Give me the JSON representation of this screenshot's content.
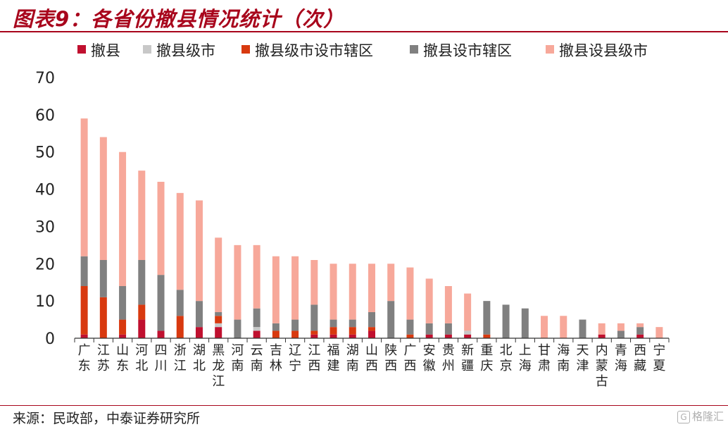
{
  "title": "图表9：各省份撤县情况统计（次）",
  "source": "来源：民政部，中泰证券研究所",
  "watermark": "格隆汇",
  "colors": {
    "title": "#a8051c",
    "series": [
      "#c0102f",
      "#c8c8c8",
      "#d8390f",
      "#808080",
      "#f7a89a"
    ]
  },
  "chart_data": {
    "type": "bar",
    "stacked": true,
    "ylim": [
      0,
      70
    ],
    "yticks": [
      0,
      10,
      20,
      30,
      40,
      50,
      60,
      70
    ],
    "legend_position": "top",
    "grid": false,
    "categories": [
      "广东",
      "江苏",
      "山东",
      "河北",
      "四川",
      "浙江",
      "湖北",
      "黑龙江",
      "河南",
      "云南",
      "吉林",
      "辽宁",
      "江西",
      "福建",
      "湖南",
      "山西",
      "陕西",
      "广西",
      "安徽",
      "贵州",
      "新疆",
      "重庆",
      "北京",
      "上海",
      "甘肃",
      "海南",
      "天津",
      "内蒙古",
      "青海",
      "西藏",
      "宁夏"
    ],
    "series": [
      {
        "name": "撤县",
        "values": [
          1,
          0,
          1,
          5,
          2,
          0,
          3,
          3,
          0,
          2,
          0,
          0,
          1,
          1,
          1,
          2,
          0,
          0,
          1,
          1,
          1,
          0,
          0,
          0,
          0,
          0,
          0,
          1,
          0,
          1,
          0
        ]
      },
      {
        "name": "撤县级市",
        "values": [
          0,
          0,
          0,
          0,
          0,
          0,
          0,
          1,
          0,
          1,
          0,
          0,
          0,
          0,
          0,
          0,
          0,
          0,
          0,
          0,
          1,
          0,
          0,
          0,
          0,
          0,
          0,
          0,
          0,
          0,
          0
        ]
      },
      {
        "name": "撤县级市设市辖区",
        "values": [
          13,
          11,
          4,
          4,
          0,
          6,
          0,
          2,
          0,
          0,
          2,
          2,
          1,
          2,
          2,
          1,
          0,
          1,
          0,
          0,
          0,
          1,
          0,
          0,
          0,
          0,
          0,
          0,
          0,
          0,
          0
        ]
      },
      {
        "name": "撤县设市辖区",
        "values": [
          8,
          10,
          9,
          12,
          15,
          7,
          7,
          1,
          5,
          5,
          2,
          3,
          7,
          2,
          2,
          4,
          10,
          4,
          3,
          3,
          0,
          9,
          9,
          8,
          0,
          0,
          5,
          0,
          2,
          2,
          0
        ]
      },
      {
        "name": "撤县设县级市",
        "values": [
          37,
          33,
          36,
          24,
          25,
          26,
          27,
          20,
          20,
          17,
          18,
          17,
          12,
          15,
          15,
          13,
          10,
          14,
          12,
          10,
          10,
          0,
          0,
          0,
          6,
          6,
          0,
          3,
          2,
          1,
          3
        ]
      }
    ]
  }
}
